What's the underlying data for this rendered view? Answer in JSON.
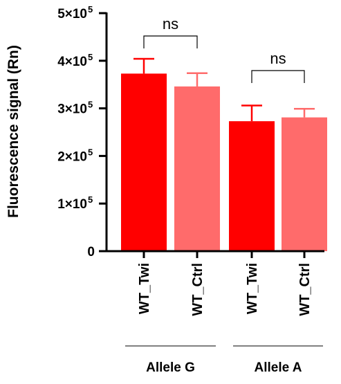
{
  "chart_data": {
    "type": "bar",
    "title": "",
    "xlabel": "",
    "ylabel": "Fluorescence signal (Rn)",
    "ylim": [
      0,
      500000
    ],
    "yticks": [
      {
        "value": 0,
        "label": "0"
      },
      {
        "value": 100000,
        "label": "1×10",
        "exp": "5"
      },
      {
        "value": 200000,
        "label": "2×10",
        "exp": "5"
      },
      {
        "value": 300000,
        "label": "3×10",
        "exp": "5"
      },
      {
        "value": 400000,
        "label": "4×10",
        "exp": "5"
      },
      {
        "value": 500000,
        "label": "5×10",
        "exp": "5"
      }
    ],
    "categories": [
      "WT_Twi",
      "WT_Ctrl",
      "WT_Twi",
      "WT_Ctrl"
    ],
    "values": [
      373000,
      346000,
      273000,
      281000
    ],
    "error_upper": [
      31000,
      28000,
      33000,
      18000
    ],
    "bar_colors": [
      "#ff0000",
      "#ff6b6b",
      "#ff0000",
      "#ff6b6b"
    ],
    "groups": [
      {
        "label": "Allele G",
        "bars": [
          0,
          1
        ]
      },
      {
        "label": "Allele A",
        "bars": [
          2,
          3
        ]
      }
    ],
    "comparisons": [
      {
        "bars": [
          0,
          1
        ],
        "label": "ns"
      },
      {
        "bars": [
          2,
          3
        ],
        "label": "ns"
      }
    ],
    "grid": false,
    "legend": "none"
  }
}
